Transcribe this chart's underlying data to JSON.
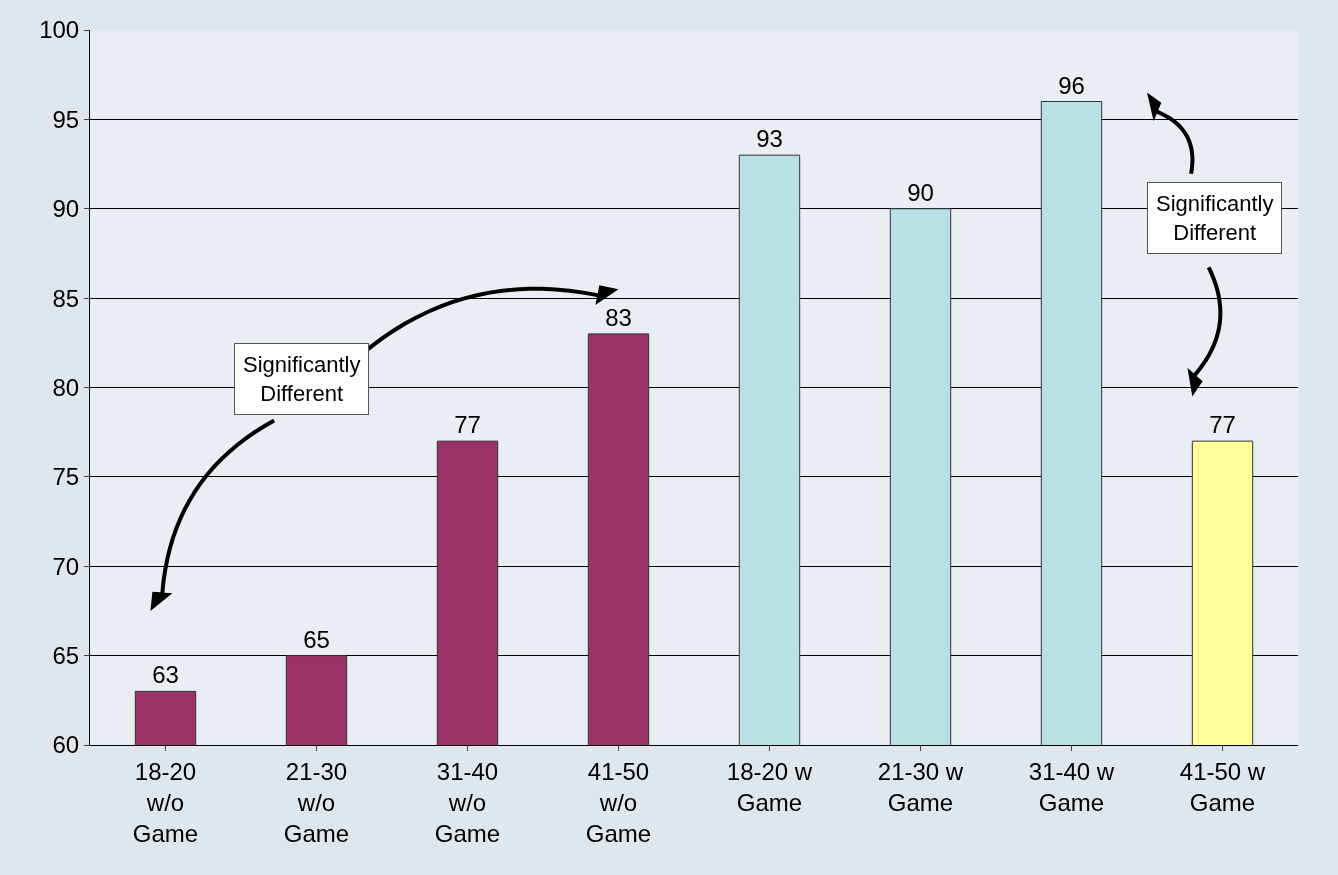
{
  "chart_data": {
    "type": "bar",
    "categories": [
      "18-20 w/o Game",
      "21-30 w/o Game",
      "31-40 w/o Game",
      "41-50 w/o Game",
      "18-20 w Game",
      "21-30 w Game",
      "31-40 w Game",
      "41-50 w Game"
    ],
    "values": [
      63,
      65,
      77,
      83,
      93,
      90,
      96,
      77
    ],
    "colors": [
      "#993366",
      "#993366",
      "#993366",
      "#993366",
      "#b9e0e3",
      "#b9e0e3",
      "#b9e0e3",
      "#ffff99"
    ],
    "ylim": [
      60,
      100
    ],
    "yticks": [
      60,
      65,
      70,
      75,
      80,
      85,
      90,
      95,
      100
    ],
    "grid": "y",
    "data_labels": true,
    "legend": false,
    "annotations": [
      "Significantly Different",
      "Significantly Different"
    ]
  }
}
